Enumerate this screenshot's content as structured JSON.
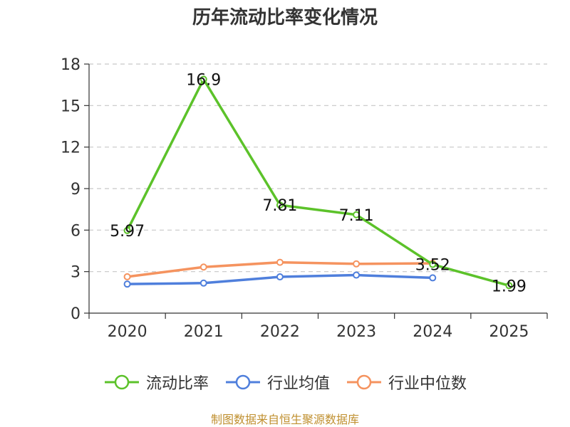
{
  "title": "历年流动比率变化情况",
  "footer": "制图数据来自恒生聚源数据库",
  "chart_data": {
    "type": "line",
    "categories": [
      "2020",
      "2021",
      "2022",
      "2023",
      "2024",
      "2025"
    ],
    "ylim": [
      0,
      18
    ],
    "yticks": [
      0,
      3,
      6,
      9,
      12,
      15,
      18
    ],
    "grid": true,
    "legend_position": "bottom",
    "series": [
      {
        "name": "流动比率",
        "color": "#5cc22a",
        "values": [
          5.97,
          16.9,
          7.81,
          7.11,
          3.52,
          1.99
        ],
        "labels": [
          "5.97",
          "16.9",
          "7.81",
          "7.11",
          "3.52",
          "1.99"
        ]
      },
      {
        "name": "行业均值",
        "color": "#4f7fdc",
        "values": [
          2.1,
          2.17,
          2.62,
          2.75,
          2.55,
          null
        ]
      },
      {
        "name": "行业中位数",
        "color": "#f5935f",
        "values": [
          2.63,
          3.33,
          3.67,
          3.56,
          3.6,
          null
        ]
      }
    ]
  }
}
